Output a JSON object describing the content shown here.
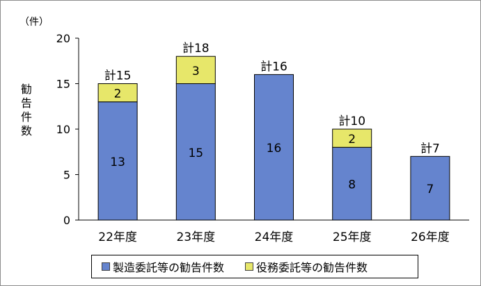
{
  "chart_data": {
    "type": "bar",
    "stacked": true,
    "unit_label": "（件）",
    "ylabel": "勧告件数",
    "xlabel": "",
    "ylim": [
      0,
      20
    ],
    "yticks": [
      0,
      5,
      10,
      15,
      20
    ],
    "grid": false,
    "legend_position": "bottom",
    "categories": [
      "22年度",
      "23年度",
      "24年度",
      "25年度",
      "26年度"
    ],
    "series": [
      {
        "name": "製造委託等の勧告件数",
        "color": "#6584CE",
        "values": [
          13,
          15,
          16,
          8,
          7
        ]
      },
      {
        "name": "役務委託等の勧告件数",
        "color": "#E7E76A",
        "values": [
          2,
          3,
          0,
          2,
          0
        ]
      }
    ],
    "totals": [
      "計15",
      "計18",
      "計16",
      "計10",
      "計7"
    ]
  }
}
